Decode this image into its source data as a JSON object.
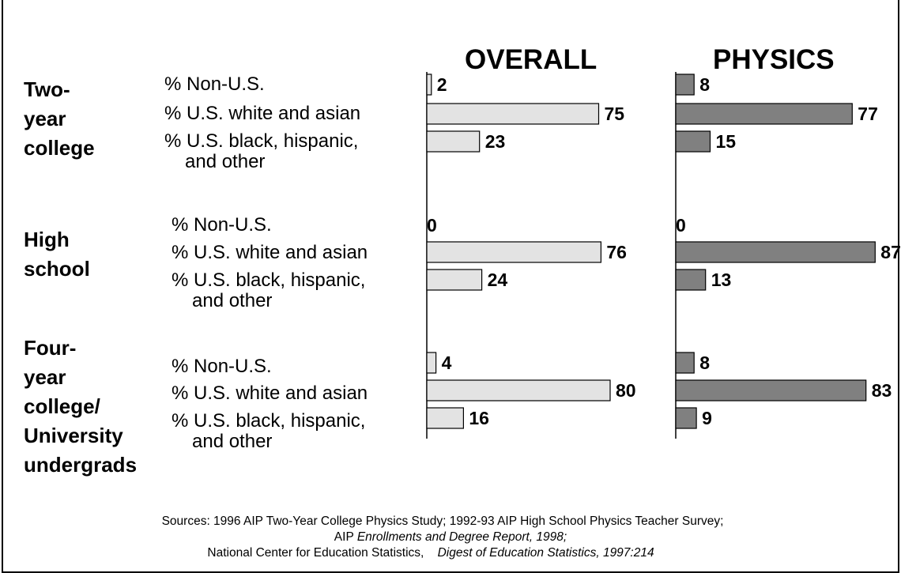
{
  "chart_data": {
    "type": "bar",
    "panels": [
      {
        "title": "OVERALL",
        "color": "#e3e3e3"
      },
      {
        "title": "PHYSICS",
        "color": "#808080"
      }
    ],
    "groups": [
      {
        "label": [
          "Two-",
          "year",
          "college"
        ],
        "categories": [
          {
            "label": [
              "% Non-U.S."
            ],
            "overall": 2,
            "physics": 8
          },
          {
            "label": [
              "% U.S. white and asian"
            ],
            "overall": 75,
            "physics": 77
          },
          {
            "label": [
              "% U.S. black, hispanic,",
              "and other"
            ],
            "overall": 23,
            "physics": 15
          }
        ]
      },
      {
        "label": [
          "High",
          "school"
        ],
        "categories": [
          {
            "label": [
              "% Non-U.S."
            ],
            "overall": 0,
            "physics": 0
          },
          {
            "label": [
              "% U.S. white and asian"
            ],
            "overall": 76,
            "physics": 87
          },
          {
            "label": [
              "% U.S. black, hispanic,",
              "and other"
            ],
            "overall": 24,
            "physics": 13
          }
        ]
      },
      {
        "label": [
          "Four-",
          "year",
          "college/",
          "University",
          "undergrads"
        ],
        "categories": [
          {
            "label": [
              "% Non-U.S."
            ],
            "overall": 4,
            "physics": 8
          },
          {
            "label": [
              "% U.S. white and asian"
            ],
            "overall": 80,
            "physics": 83
          },
          {
            "label": [
              "% U.S. black, hispanic,",
              "and other"
            ],
            "overall": 16,
            "physics": 9
          }
        ]
      }
    ]
  },
  "sources": {
    "line1": "Sources:  1996 AIP Two-Year College Physics Study; 1992-93 AIP High School Physics Teacher Survey;",
    "line2_prefix": "AIP ",
    "line2_italic": "Enrollments and Degree Report, 1998;",
    "line3_prefix": "National Center for Education Statistics,    ",
    "line3_italic": "Digest of Education Statistics, 1997:214"
  }
}
